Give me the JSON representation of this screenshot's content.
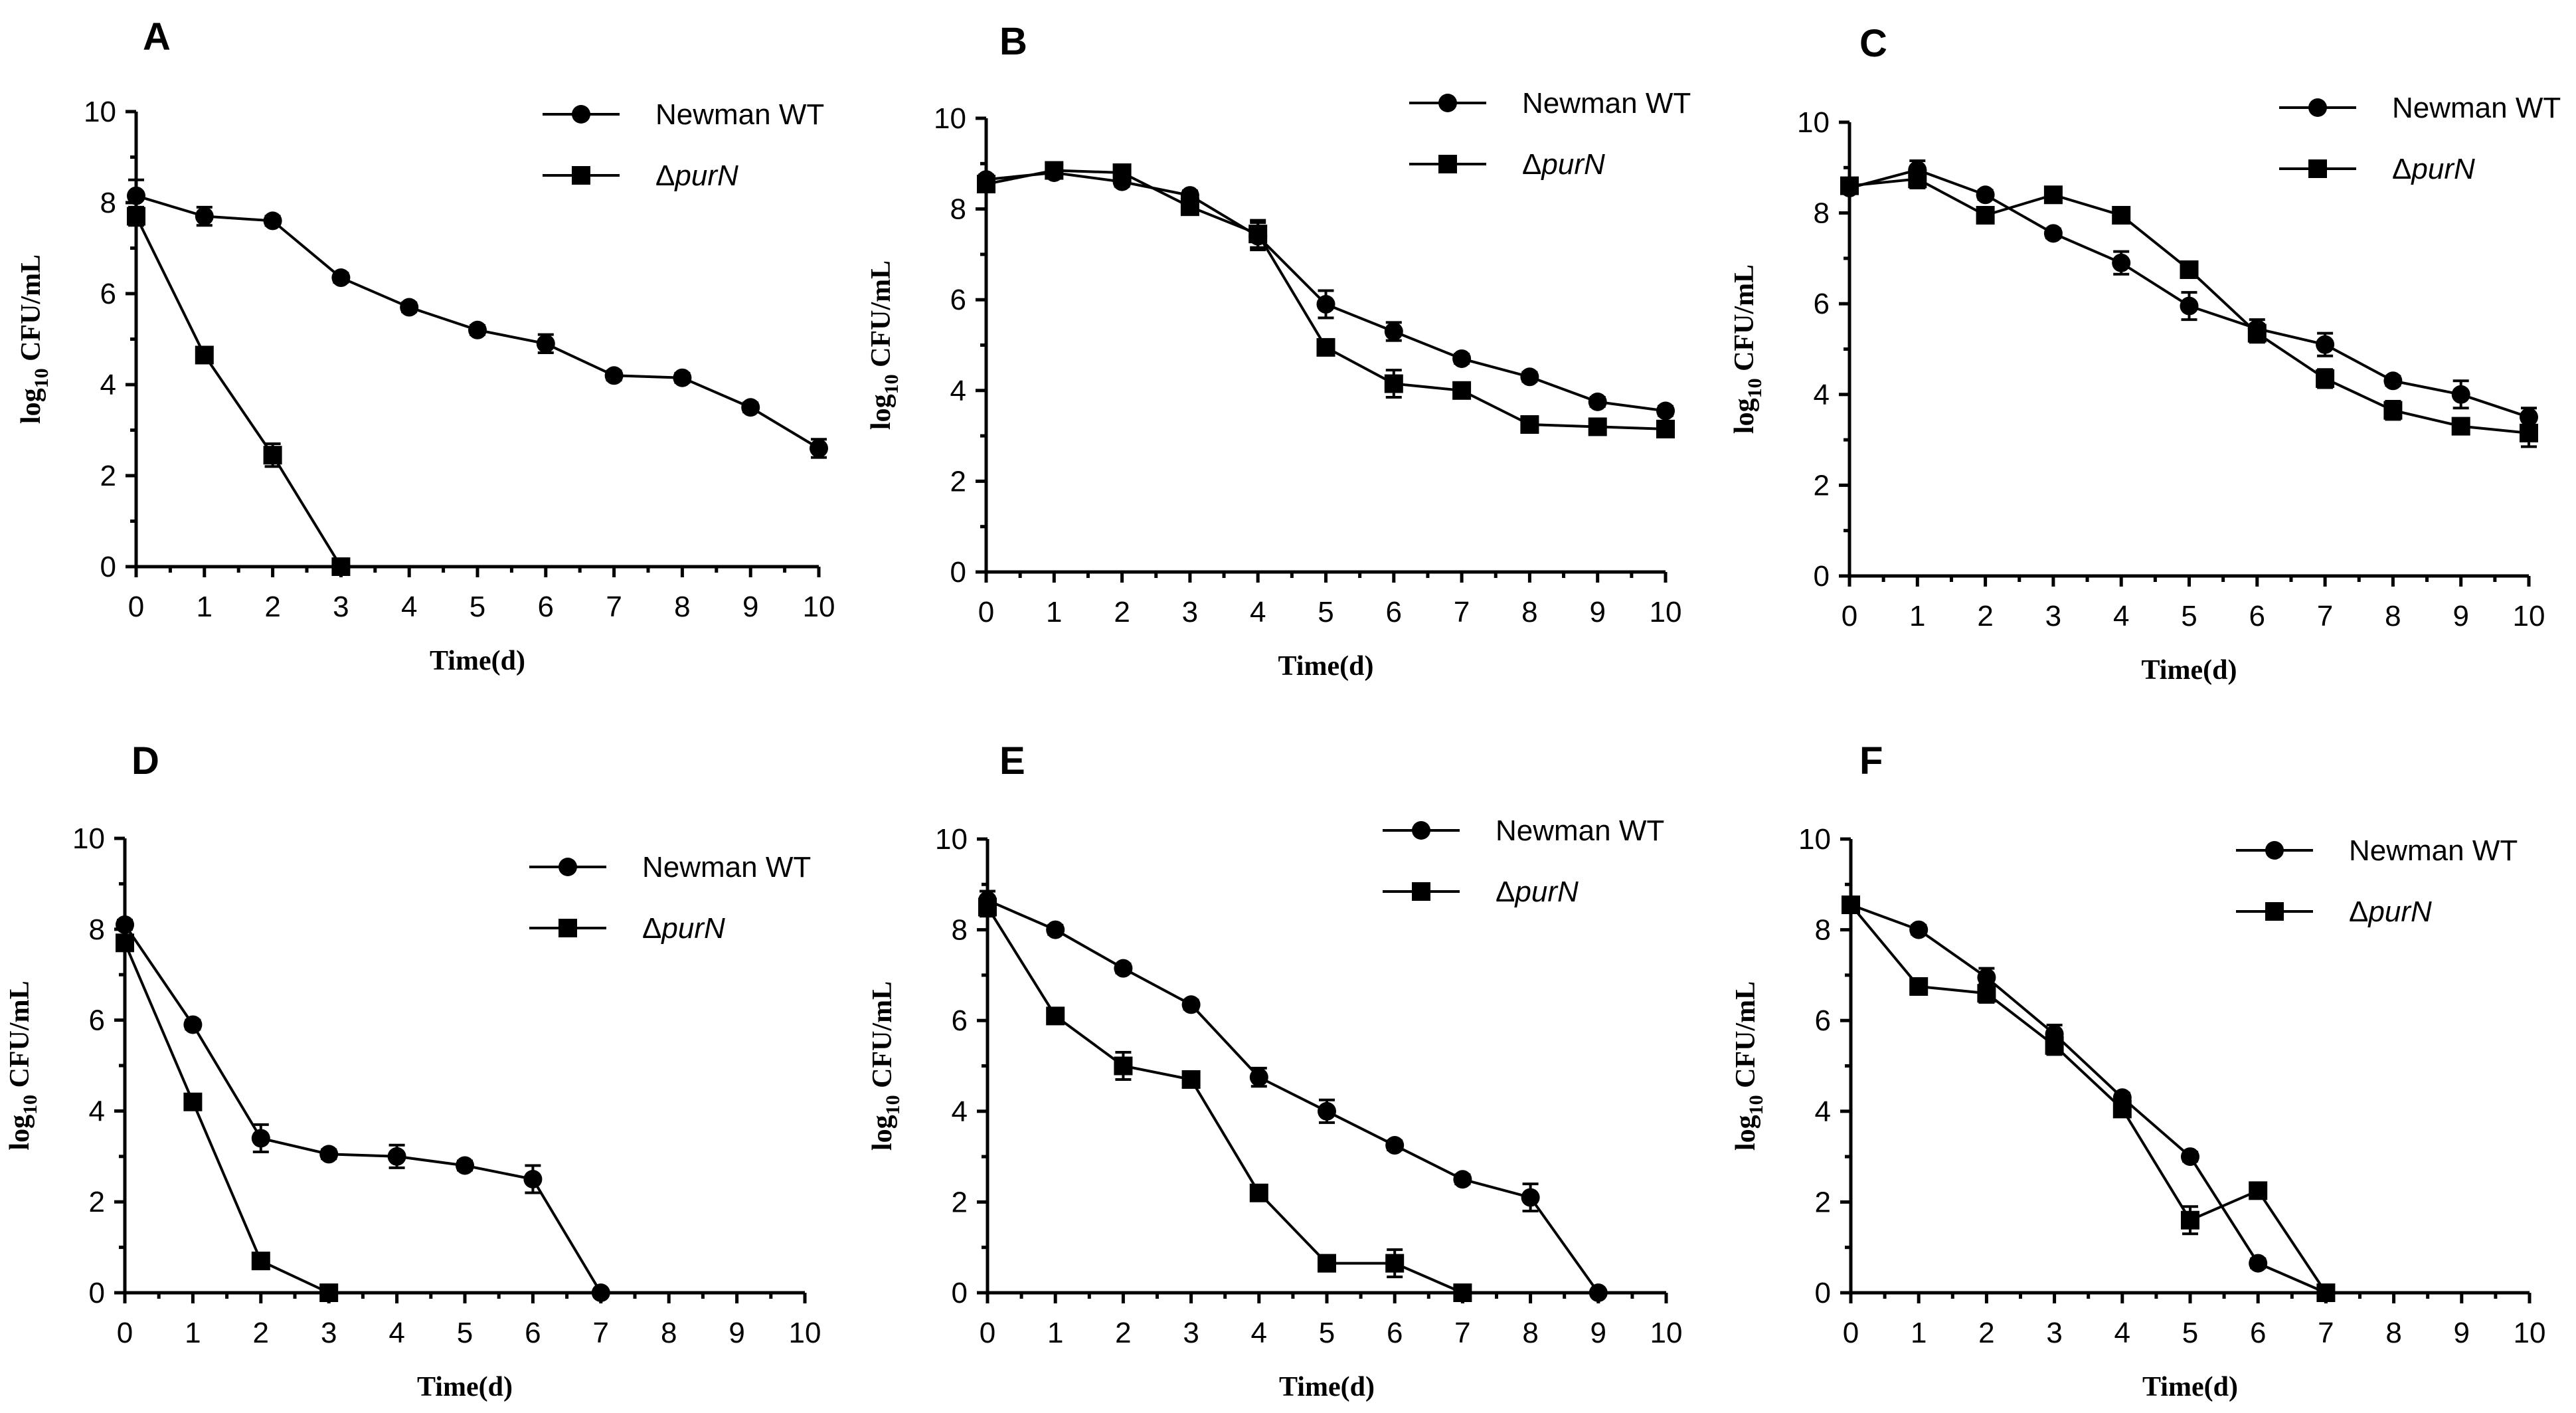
{
  "chart_data": [
    {
      "panel": "A",
      "type": "line",
      "xlabel": "Time(d)",
      "ylabel_main": "log",
      "ylabel_sub": "10",
      "ylabel_rest": " CFU/mL",
      "xlim": [
        0,
        10
      ],
      "ylim": [
        0,
        10
      ],
      "xticks": [
        "0",
        "1",
        "2",
        "3",
        "4",
        "5",
        "6",
        "7",
        "8",
        "9",
        "10"
      ],
      "yticks": [
        "0",
        "2",
        "4",
        "6",
        "8",
        "10"
      ],
      "legend": "top-right",
      "series": [
        {
          "name": "Newman WT",
          "name_prefix": "Newman WT",
          "name_italic": "",
          "marker": "circle",
          "x": [
            0,
            1,
            2,
            3,
            4,
            5,
            6,
            7,
            8,
            9,
            10
          ],
          "y": [
            8.15,
            7.7,
            7.6,
            6.35,
            5.7,
            5.2,
            4.9,
            4.2,
            4.15,
            3.5,
            2.6
          ],
          "err": [
            0.35,
            0.2,
            0.1,
            0.1,
            0.1,
            0.1,
            0.2,
            0.1,
            0.1,
            0.1,
            0.2
          ]
        },
        {
          "name": "ΔpurN",
          "name_prefix": "Δ",
          "name_italic": "purN",
          "marker": "square",
          "x": [
            0,
            1,
            2,
            3
          ],
          "y": [
            7.7,
            4.65,
            2.45,
            0
          ],
          "err": [
            0.2,
            0.1,
            0.25,
            0
          ]
        }
      ]
    },
    {
      "panel": "B",
      "type": "line",
      "xlabel": "Time(d)",
      "ylabel_main": "log",
      "ylabel_sub": "10",
      "ylabel_rest": " CFU/mL",
      "xlim": [
        0,
        10
      ],
      "ylim": [
        0,
        10
      ],
      "xticks": [
        "0",
        "1",
        "2",
        "3",
        "4",
        "5",
        "6",
        "7",
        "8",
        "9",
        "10"
      ],
      "yticks": [
        "0",
        "2",
        "4",
        "6",
        "8",
        "10"
      ],
      "legend": "top-right",
      "series": [
        {
          "name": "Newman WT",
          "name_prefix": "Newman WT",
          "name_italic": "",
          "marker": "circle",
          "x": [
            0,
            1,
            2,
            3,
            4,
            5,
            6,
            7,
            8,
            9,
            10
          ],
          "y": [
            8.65,
            8.8,
            8.6,
            8.3,
            7.4,
            5.9,
            5.3,
            4.7,
            4.3,
            3.75,
            3.55
          ],
          "err": [
            0.1,
            0.1,
            0.1,
            0.1,
            0.3,
            0.3,
            0.2,
            0.1,
            0.1,
            0.1,
            0.1
          ]
        },
        {
          "name": "ΔpurN",
          "name_prefix": "Δ",
          "name_italic": "purN",
          "marker": "square",
          "x": [
            0,
            1,
            2,
            3,
            4,
            5,
            6,
            7,
            8,
            9,
            10
          ],
          "y": [
            8.55,
            8.85,
            8.8,
            8.05,
            7.45,
            4.95,
            4.15,
            4.0,
            3.25,
            3.2,
            3.15
          ],
          "err": [
            0.1,
            0.1,
            0.1,
            0.1,
            0.3,
            0.1,
            0.3,
            0.1,
            0.1,
            0.1,
            0.1
          ]
        }
      ]
    },
    {
      "panel": "C",
      "type": "line",
      "xlabel": "Time(d)",
      "ylabel_main": "log",
      "ylabel_sub": "10",
      "ylabel_rest": " CFU/mL",
      "xlim": [
        0,
        10
      ],
      "ylim": [
        0,
        10
      ],
      "xticks": [
        "0",
        "1",
        "2",
        "3",
        "4",
        "5",
        "6",
        "7",
        "8",
        "9",
        "10"
      ],
      "yticks": [
        "0",
        "2",
        "4",
        "6",
        "8",
        "10"
      ],
      "legend": "top-right",
      "series": [
        {
          "name": "Newman WT",
          "name_prefix": "Newman WT",
          "name_italic": "",
          "marker": "circle",
          "x": [
            0,
            1,
            2,
            3,
            4,
            5,
            6,
            7,
            8,
            9,
            10
          ],
          "y": [
            8.55,
            8.95,
            8.4,
            7.55,
            6.9,
            5.95,
            5.45,
            5.1,
            4.3,
            4.0,
            3.5
          ],
          "err": [
            0.1,
            0.2,
            0.1,
            0.1,
            0.25,
            0.3,
            0.2,
            0.25,
            0.1,
            0.3,
            0.2
          ]
        },
        {
          "name": "ΔpurN",
          "name_prefix": "Δ",
          "name_italic": "purN",
          "marker": "square",
          "x": [
            0,
            1,
            2,
            3,
            4,
            5,
            6,
            7,
            8,
            9,
            10
          ],
          "y": [
            8.6,
            8.75,
            7.95,
            8.4,
            7.95,
            6.75,
            5.35,
            4.35,
            3.65,
            3.3,
            3.15
          ],
          "err": [
            0.1,
            0.2,
            0.1,
            0.1,
            0.1,
            0.1,
            0.2,
            0.2,
            0.2,
            0.1,
            0.3
          ]
        }
      ]
    },
    {
      "panel": "D",
      "type": "line",
      "xlabel": "Time(d)",
      "ylabel_main": "log",
      "ylabel_sub": "10",
      "ylabel_rest": " CFU/mL",
      "xlim": [
        0,
        10
      ],
      "ylim": [
        0,
        10
      ],
      "xticks": [
        "0",
        "1",
        "2",
        "3",
        "4",
        "5",
        "6",
        "7",
        "8",
        "9",
        "10"
      ],
      "yticks": [
        "0",
        "2",
        "4",
        "6",
        "8",
        "10"
      ],
      "legend": "top-right",
      "series": [
        {
          "name": "Newman WT",
          "name_prefix": "Newman WT",
          "name_italic": "",
          "marker": "circle",
          "x": [
            0,
            1,
            2,
            3,
            4,
            5,
            6,
            7
          ],
          "y": [
            8.1,
            5.9,
            3.4,
            3.05,
            3.0,
            2.8,
            2.5,
            0
          ],
          "err": [
            0.1,
            0.1,
            0.3,
            0.1,
            0.25,
            0.1,
            0.3,
            0
          ]
        },
        {
          "name": "ΔpurN",
          "name_prefix": "Δ",
          "name_italic": "purN",
          "marker": "square",
          "x": [
            0,
            1,
            2,
            3
          ],
          "y": [
            7.7,
            4.2,
            0.7,
            0
          ],
          "err": [
            0.1,
            0.1,
            0.1,
            0
          ]
        }
      ]
    },
    {
      "panel": "E",
      "type": "line",
      "xlabel": "Time(d)",
      "ylabel_main": "log",
      "ylabel_sub": "10",
      "ylabel_rest": " CFU/mL",
      "xlim": [
        0,
        10
      ],
      "ylim": [
        0,
        10
      ],
      "xticks": [
        "0",
        "1",
        "2",
        "3",
        "4",
        "5",
        "6",
        "7",
        "8",
        "9",
        "10"
      ],
      "yticks": [
        "0",
        "2",
        "4",
        "6",
        "8",
        "10"
      ],
      "legend": "top-right",
      "series": [
        {
          "name": "Newman WT",
          "name_prefix": "Newman WT",
          "name_italic": "",
          "marker": "circle",
          "x": [
            0,
            1,
            2,
            3,
            4,
            5,
            6,
            7,
            8,
            9
          ],
          "y": [
            8.65,
            8.0,
            7.15,
            6.35,
            4.75,
            4.0,
            3.25,
            2.5,
            2.1,
            0
          ],
          "err": [
            0.2,
            0.1,
            0.1,
            0.1,
            0.2,
            0.25,
            0.1,
            0.1,
            0.3,
            0
          ]
        },
        {
          "name": "ΔpurN",
          "name_prefix": "Δ",
          "name_italic": "purN",
          "marker": "square",
          "x": [
            0,
            1,
            2,
            3,
            4,
            5,
            6,
            7
          ],
          "y": [
            8.5,
            6.1,
            5.0,
            4.7,
            2.2,
            0.65,
            0.65,
            0
          ],
          "err": [
            0.2,
            0.1,
            0.3,
            0.1,
            0.1,
            0.1,
            0.3,
            0
          ]
        }
      ]
    },
    {
      "panel": "F",
      "type": "line",
      "xlabel": "Time(d)",
      "ylabel_main": "log",
      "ylabel_sub": "10",
      "ylabel_rest": " CFU/mL",
      "xlim": [
        0,
        10
      ],
      "ylim": [
        0,
        10
      ],
      "xticks": [
        "0",
        "1",
        "2",
        "3",
        "4",
        "5",
        "6",
        "7",
        "8",
        "9",
        "10"
      ],
      "yticks": [
        "0",
        "2",
        "4",
        "6",
        "8",
        "10"
      ],
      "legend": "top-right",
      "series": [
        {
          "name": "Newman WT",
          "name_prefix": "Newman WT",
          "name_italic": "",
          "marker": "circle",
          "x": [
            0,
            1,
            2,
            3,
            4,
            5,
            6,
            7
          ],
          "y": [
            8.55,
            8.0,
            6.95,
            5.7,
            4.3,
            3.0,
            0.65,
            0
          ],
          "err": [
            0.1,
            0.1,
            0.2,
            0.2,
            0.1,
            0.1,
            0.1,
            0
          ]
        },
        {
          "name": "ΔpurN",
          "name_prefix": "Δ",
          "name_italic": "purN",
          "marker": "square",
          "x": [
            0,
            1,
            2,
            3,
            4,
            5,
            6,
            7
          ],
          "y": [
            8.55,
            6.75,
            6.6,
            5.45,
            4.05,
            1.6,
            2.25,
            0
          ],
          "err": [
            0.1,
            0.1,
            0.2,
            0.2,
            0.1,
            0.3,
            0.1,
            0
          ]
        }
      ]
    }
  ]
}
